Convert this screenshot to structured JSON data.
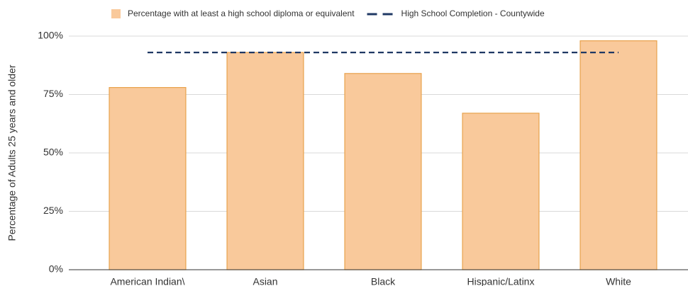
{
  "chart_data": {
    "type": "bar",
    "y_label": "Percentage of Adults 25 years and older",
    "categories": [
      "American Indian\\",
      "Asian",
      "Black",
      "Hispanic/Latinx",
      "White"
    ],
    "series": [
      {
        "name": "Percentage with at least a high school diploma or equivalent",
        "type": "bar",
        "color": "#f9c99b",
        "edge_color": "#e8a24d",
        "values": [
          78,
          93,
          84,
          67,
          98
        ]
      },
      {
        "name": "High School Completion - Countywide",
        "type": "line",
        "dashed": true,
        "color": "#1f3864",
        "values": [
          93,
          93,
          93,
          93,
          93
        ]
      }
    ],
    "ylim": [
      0,
      100
    ],
    "yticks": [
      {
        "value": 0,
        "label": "0%"
      },
      {
        "value": 25,
        "label": "25%"
      },
      {
        "value": 50,
        "label": "50%"
      },
      {
        "value": 75,
        "label": "75%"
      },
      {
        "value": 100,
        "label": "100%"
      }
    ],
    "grid": true,
    "legend": "top"
  }
}
